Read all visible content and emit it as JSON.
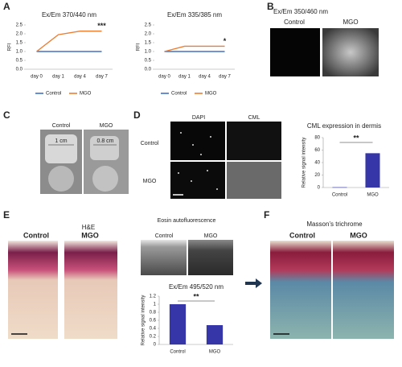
{
  "chart_data": [
    {
      "type": "line",
      "title": "Ex/Em 370/440 nm",
      "y_label": "RFI",
      "categories": [
        "day 0",
        "day 1",
        "day 4",
        "day 7"
      ],
      "series": [
        {
          "name": "Control",
          "color": "#4472c4",
          "values": [
            1,
            1,
            1,
            1
          ]
        },
        {
          "name": "MGO",
          "color": "#ed7d31",
          "values": [
            1,
            1.95,
            2.15,
            2.15
          ]
        }
      ],
      "ylim": [
        0,
        2.5
      ],
      "yticks": [
        {
          "value": 0,
          "label": "0.0"
        },
        0.5,
        {
          "value": 1,
          "label": "1.0"
        },
        1.5,
        {
          "value": 2,
          "label": "2.0"
        },
        2.5
      ],
      "annotation": "***",
      "legend": "bottom"
    },
    {
      "type": "line",
      "title": "Ex/Em 335/385 nm",
      "y_label": "RFI",
      "categories": [
        "day 0",
        "day 1",
        "day 4",
        "day 7"
      ],
      "series": [
        {
          "name": "Control",
          "color": "#4472c4",
          "values": [
            1,
            1,
            1,
            1
          ]
        },
        {
          "name": "MGO",
          "color": "#ed7d31",
          "values": [
            1,
            1.3,
            1.3,
            1.3
          ]
        }
      ],
      "ylim": [
        0,
        2.5
      ],
      "yticks": [
        {
          "value": 0,
          "label": "0.0"
        },
        0.5,
        {
          "value": 1,
          "label": "1.0"
        },
        1.5,
        {
          "value": 2,
          "label": "2.0"
        },
        2.5
      ],
      "annotation": "*",
      "legend": "bottom"
    },
    {
      "type": "bar",
      "title": "CML expression in dermis",
      "y_label": "Relative signal intensity",
      "categories": [
        "Control",
        "MGO"
      ],
      "values": [
        0.5,
        55
      ],
      "color": "#3636a8",
      "ylim": [
        0,
        80
      ],
      "yticks": [
        0,
        20,
        40,
        60,
        80
      ],
      "annotation": "**"
    },
    {
      "type": "bar",
      "title": "Ex/Em 495/520 nm",
      "y_label": "Relative signal intensity",
      "categories": [
        "Control",
        "MGO"
      ],
      "values": [
        1.0,
        0.48
      ],
      "color": "#3636a8",
      "ylim": [
        0,
        1.2
      ],
      "yticks": [
        0,
        0.2,
        0.4,
        0.6,
        0.8,
        1,
        1.2
      ],
      "annotation": "**"
    }
  ],
  "panels": {
    "letters": [
      "A",
      "B",
      "C",
      "D",
      "E",
      "F"
    ],
    "B": {
      "title": "Ex/Em 350/460 nm",
      "columns": [
        "Control",
        "MGO"
      ]
    },
    "C": {
      "columns": [
        "Control",
        "MGO"
      ],
      "image_labels": [
        "1 cm",
        "0.8 cm"
      ]
    },
    "D": {
      "columns": [
        "DAPI",
        "CML"
      ],
      "rows": [
        "Control",
        "MGO"
      ]
    },
    "E": {
      "he_title": "H&E",
      "he_columns": [
        "Control",
        "MGO"
      ],
      "eosin_title": "Eosin autofluorescence",
      "eosin_columns": [
        "Control",
        "MGO"
      ]
    },
    "F": {
      "title": "Masson’s trichrome",
      "columns": [
        "Control",
        "MGO"
      ]
    }
  }
}
